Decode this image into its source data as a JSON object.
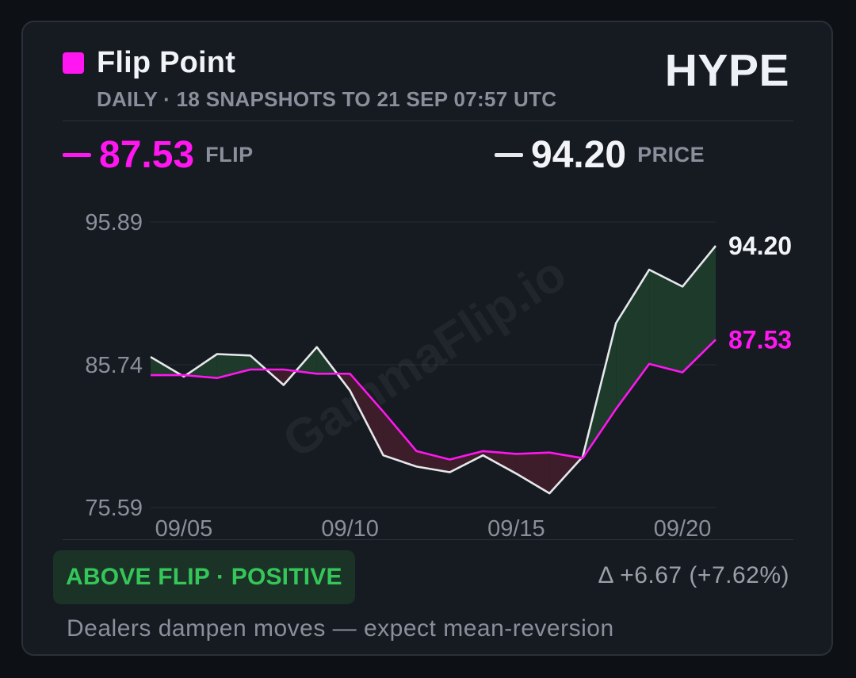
{
  "header": {
    "title": "Flip Point",
    "ticker": "HYPE",
    "subtitle": "DAILY · 18 SNAPSHOTS TO 21 SEP 07:57 UTC"
  },
  "stats": {
    "flip_value": "87.53",
    "flip_label": "FLIP",
    "price_value": "94.20",
    "price_label": "PRICE"
  },
  "colors": {
    "flip": "#ff16f0",
    "price": "#e6e8ec",
    "above_fill": "#1d3a2a",
    "below_fill": "#3d1d29",
    "grid": "#262b33",
    "axis_text": "#8a909b"
  },
  "watermark": "GammaFlip.io",
  "chart_data": {
    "type": "line",
    "x": [
      "09/04",
      "09/05",
      "09/06",
      "09/07",
      "09/08",
      "09/09",
      "09/10",
      "09/11",
      "09/12",
      "09/13",
      "09/14",
      "09/15",
      "09/16",
      "09/17",
      "09/18",
      "09/19",
      "09/20",
      "09/21"
    ],
    "series": [
      {
        "name": "FLIP",
        "values": [
          85.0,
          85.0,
          84.8,
          85.4,
          85.4,
          85.1,
          85.1,
          82.4,
          79.6,
          79.0,
          79.6,
          79.4,
          79.5,
          79.1,
          82.6,
          85.8,
          85.2,
          87.53
        ]
      },
      {
        "name": "PRICE",
        "values": [
          86.3,
          84.9,
          86.5,
          86.4,
          84.3,
          87.0,
          83.9,
          79.3,
          78.5,
          78.1,
          79.3,
          78.0,
          76.6,
          79.2,
          88.7,
          92.5,
          91.3,
          94.2
        ]
      }
    ],
    "yticks": [
      "95.89",
      "85.74",
      "75.59"
    ],
    "xticks": [
      "09/05",
      "09/10",
      "09/15",
      "09/20"
    ],
    "ylim": [
      75.59,
      95.89
    ],
    "end_labels": {
      "price": "94.20",
      "flip": "87.53"
    },
    "grid": true
  },
  "footer": {
    "regime": "ABOVE FLIP · POSITIVE",
    "delta": "Δ +6.67 (+7.62%)",
    "description": "Dealers dampen moves — expect mean-reversion"
  }
}
